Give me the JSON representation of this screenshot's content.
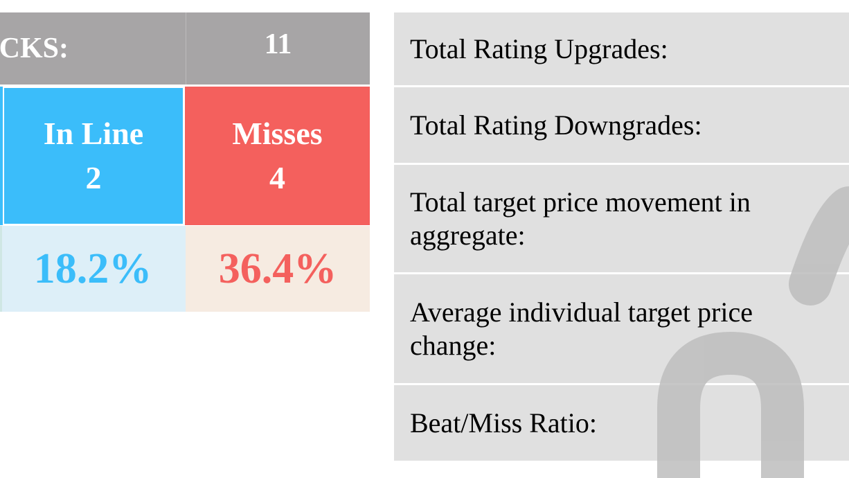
{
  "summary_table": {
    "header_label": "OCKS:",
    "header_count": "11",
    "in_line": {
      "label": "In Line",
      "count": "2",
      "percent": "18.2%",
      "color": "#3bbdfa"
    },
    "misses": {
      "label": "Misses",
      "count": "4",
      "percent": "36.4%",
      "color": "#f4605d"
    }
  },
  "stats": {
    "rating_upgrades_label": "Total Rating Upgrades:",
    "rating_downgrades_label": "Total Rating Downgrades:",
    "target_price_aggregate_label": "Total target price movement in aggregate:",
    "avg_target_price_change_label": "Average individual target price change:",
    "beat_miss_ratio_label": "Beat/Miss Ratio:"
  },
  "colors": {
    "header_gray": "#a7a5a6",
    "row_gray": "#e0e0e0",
    "inline_light": "#ddeff8",
    "misses_light": "#f6ebe1",
    "watermark": "#bdbdbd"
  }
}
